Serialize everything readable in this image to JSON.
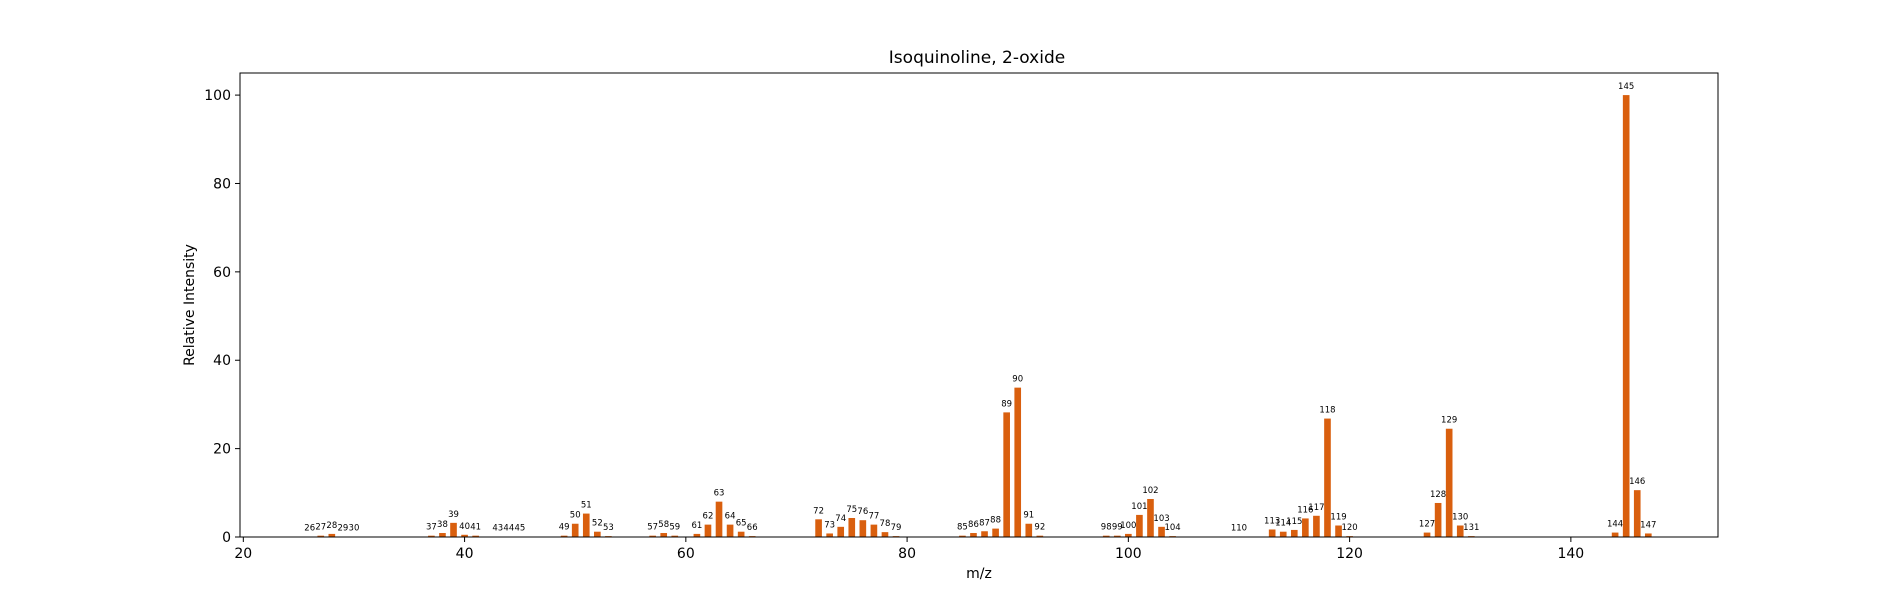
{
  "chart_data": {
    "type": "bar",
    "title": "Isoquinoline, 2-oxide",
    "xlabel": "m/z",
    "ylabel": "Relative Intensity",
    "xlim": [
      19.7,
      153.3
    ],
    "ylim": [
      0,
      105
    ],
    "xticks": [
      20,
      40,
      60,
      80,
      100,
      120,
      140
    ],
    "yticks": [
      0,
      20,
      40,
      60,
      80,
      100
    ],
    "bar_color": "#d95f0e",
    "grid": false,
    "peaks": [
      {
        "mz": 26,
        "intensity": 0.1
      },
      {
        "mz": 27,
        "intensity": 0.3
      },
      {
        "mz": 28,
        "intensity": 0.7
      },
      {
        "mz": 29,
        "intensity": 0.1
      },
      {
        "mz": 30,
        "intensity": 0.1
      },
      {
        "mz": 37,
        "intensity": 0.3
      },
      {
        "mz": 38,
        "intensity": 0.9
      },
      {
        "mz": 39,
        "intensity": 3.2
      },
      {
        "mz": 40,
        "intensity": 0.5
      },
      {
        "mz": 41,
        "intensity": 0.3
      },
      {
        "mz": 43,
        "intensity": 0.1
      },
      {
        "mz": 44,
        "intensity": 0.1
      },
      {
        "mz": 45,
        "intensity": 0.1
      },
      {
        "mz": 49,
        "intensity": 0.3
      },
      {
        "mz": 50,
        "intensity": 3.0
      },
      {
        "mz": 51,
        "intensity": 5.3
      },
      {
        "mz": 52,
        "intensity": 1.2
      },
      {
        "mz": 53,
        "intensity": 0.2
      },
      {
        "mz": 57,
        "intensity": 0.3
      },
      {
        "mz": 58,
        "intensity": 0.9
      },
      {
        "mz": 59,
        "intensity": 0.3
      },
      {
        "mz": 61,
        "intensity": 0.7
      },
      {
        "mz": 62,
        "intensity": 2.8
      },
      {
        "mz": 63,
        "intensity": 8.0
      },
      {
        "mz": 64,
        "intensity": 2.8
      },
      {
        "mz": 65,
        "intensity": 1.2
      },
      {
        "mz": 66,
        "intensity": 0.2
      },
      {
        "mz": 72,
        "intensity": 4.0
      },
      {
        "mz": 73,
        "intensity": 0.8
      },
      {
        "mz": 74,
        "intensity": 2.3
      },
      {
        "mz": 75,
        "intensity": 4.3
      },
      {
        "mz": 76,
        "intensity": 3.8
      },
      {
        "mz": 77,
        "intensity": 2.8
      },
      {
        "mz": 78,
        "intensity": 1.1
      },
      {
        "mz": 79,
        "intensity": 0.2
      },
      {
        "mz": 85,
        "intensity": 0.3
      },
      {
        "mz": 86,
        "intensity": 0.9
      },
      {
        "mz": 87,
        "intensity": 1.3
      },
      {
        "mz": 88,
        "intensity": 1.9
      },
      {
        "mz": 89,
        "intensity": 28.2
      },
      {
        "mz": 90,
        "intensity": 33.8
      },
      {
        "mz": 91,
        "intensity": 3.0
      },
      {
        "mz": 92,
        "intensity": 0.3
      },
      {
        "mz": 98,
        "intensity": 0.3
      },
      {
        "mz": 99,
        "intensity": 0.3
      },
      {
        "mz": 100,
        "intensity": 0.7
      },
      {
        "mz": 101,
        "intensity": 5.0
      },
      {
        "mz": 102,
        "intensity": 8.6
      },
      {
        "mz": 103,
        "intensity": 2.3
      },
      {
        "mz": 104,
        "intensity": 0.2
      },
      {
        "mz": 110,
        "intensity": 0.1
      },
      {
        "mz": 113,
        "intensity": 1.7
      },
      {
        "mz": 114,
        "intensity": 1.2
      },
      {
        "mz": 115,
        "intensity": 1.6
      },
      {
        "mz": 116,
        "intensity": 4.2
      },
      {
        "mz": 117,
        "intensity": 4.8
      },
      {
        "mz": 118,
        "intensity": 26.8
      },
      {
        "mz": 119,
        "intensity": 2.6
      },
      {
        "mz": 120,
        "intensity": 0.2
      },
      {
        "mz": 127,
        "intensity": 1.0
      },
      {
        "mz": 128,
        "intensity": 7.7
      },
      {
        "mz": 129,
        "intensity": 24.5
      },
      {
        "mz": 130,
        "intensity": 2.6
      },
      {
        "mz": 131,
        "intensity": 0.2
      },
      {
        "mz": 144,
        "intensity": 1.0
      },
      {
        "mz": 145,
        "intensity": 100.0
      },
      {
        "mz": 146,
        "intensity": 10.6
      },
      {
        "mz": 147,
        "intensity": 0.8
      }
    ]
  }
}
